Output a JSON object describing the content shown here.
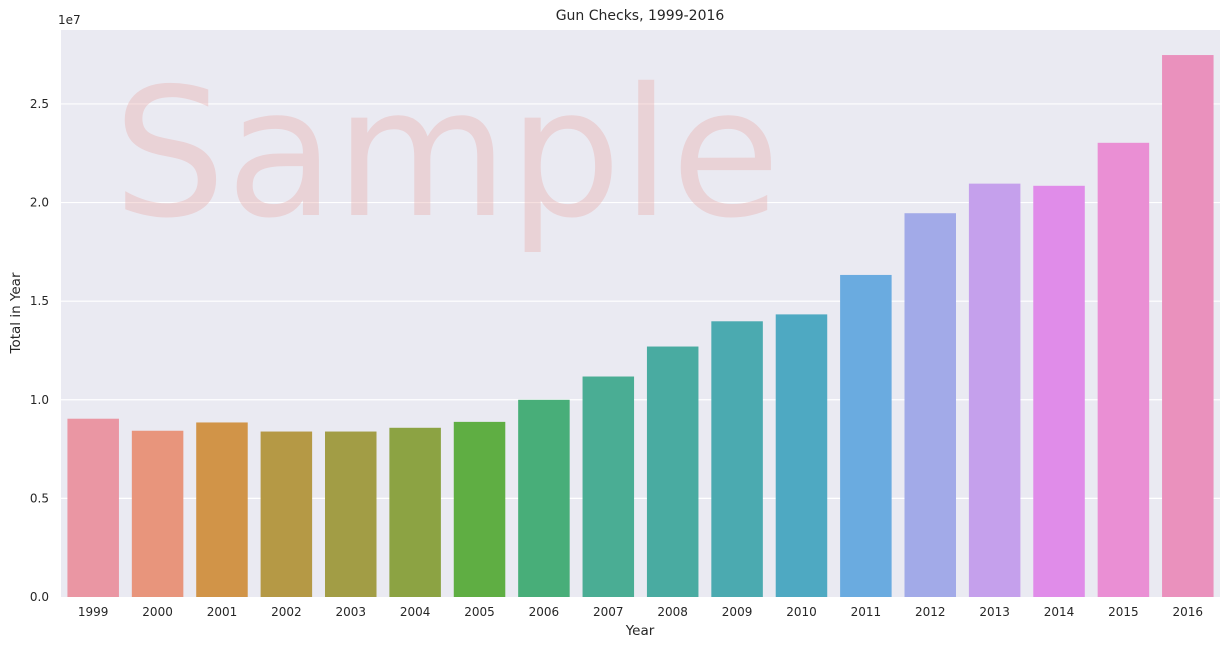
{
  "watermark": "Sample",
  "chart_data": {
    "type": "bar",
    "title": "Gun Checks, 1999-2016",
    "xlabel": "Year",
    "ylabel": "Total in Year",
    "y_offset_label": "1e7",
    "categories": [
      "1999",
      "2000",
      "2001",
      "2002",
      "2003",
      "2004",
      "2005",
      "2006",
      "2007",
      "2008",
      "2009",
      "2010",
      "2011",
      "2012",
      "2013",
      "2014",
      "2015",
      "2016"
    ],
    "values": [
      9040000,
      8430000,
      8850000,
      8390000,
      8390000,
      8580000,
      8880000,
      10000000,
      11180000,
      12700000,
      13980000,
      14330000,
      16330000,
      19460000,
      20960000,
      20850000,
      23030000,
      27480000
    ],
    "colors": [
      "#ea96a3",
      "#e8957c",
      "#d19448",
      "#b59945",
      "#a29d45",
      "#8ca343",
      "#5fae43",
      "#48ae79",
      "#4aad94",
      "#49aba1",
      "#4baab0",
      "#4ea9c2",
      "#6aabe0",
      "#a2aae8",
      "#c5a0ec",
      "#e08ce9",
      "#ea8fd4",
      "#ea91bd"
    ],
    "yticks": [
      "0.0",
      "0.5",
      "1.0",
      "1.5",
      "2.0",
      "2.5"
    ],
    "ylim": [
      0,
      28750000
    ],
    "grid": true,
    "legend": "none"
  }
}
